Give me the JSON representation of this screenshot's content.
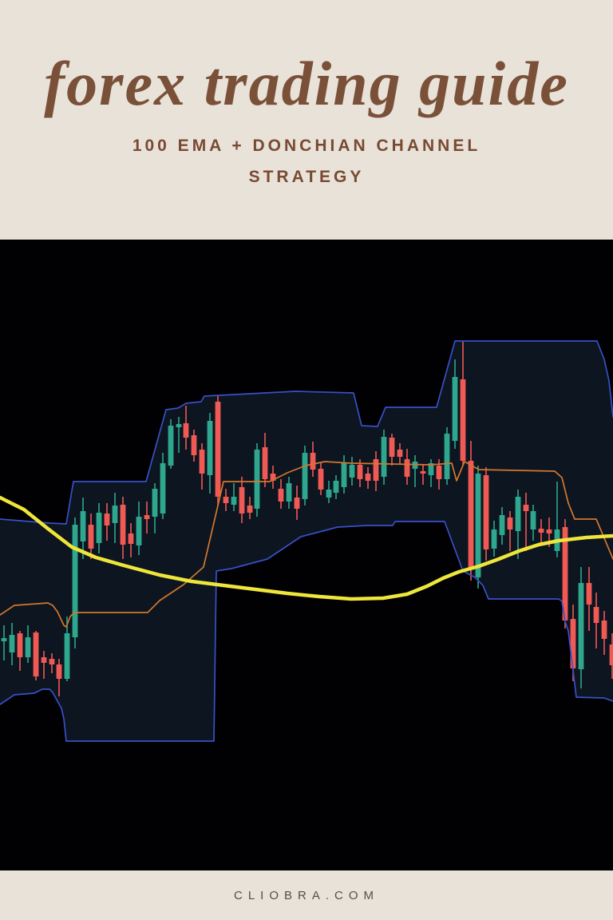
{
  "header": {
    "title": "forex trading guide",
    "subtitle_line1": "100 EMA + DONCHIAN CHANNEL",
    "subtitle_line2": "STRATEGY"
  },
  "footer": {
    "url": "CLIOBRA.COM"
  },
  "theme": {
    "page_background": "#e8e2d9",
    "title_color": "#7a5138",
    "subtitle_color": "#794a31",
    "footer_color": "#554f49",
    "chart_background": "#010103"
  },
  "chart_data": {
    "type": "candlestick",
    "title": "",
    "xlabel": "",
    "ylabel": "",
    "note": "Price chart with no visible numeric axes; values are in chart-local pixel units (x: 0-768 left to right, y: 0-790 from top, lower y = higher price).",
    "grid": false,
    "legend": false,
    "bullish_color": "#2ea78e",
    "bearish_color": "#ef5a55",
    "candle_body_width": 6.8,
    "candles": {
      "x": [
        5,
        15,
        25,
        35,
        45,
        55,
        65,
        74,
        84,
        94,
        104,
        114,
        124,
        134,
        144,
        154,
        164,
        174,
        184,
        194,
        204,
        214,
        224,
        233,
        243,
        253,
        263,
        273,
        283,
        293,
        303,
        313,
        322,
        332,
        342,
        352,
        362,
        372,
        382,
        392,
        402,
        412,
        421,
        431,
        441,
        451,
        461,
        471,
        481,
        491,
        501,
        510,
        520,
        530,
        540,
        550,
        560,
        570,
        580,
        590,
        599,
        609,
        619,
        629,
        639,
        649,
        659,
        668,
        678,
        688,
        698,
        708,
        718,
        728,
        738,
        747,
        757,
        767
      ],
      "open": [
        503,
        517,
        493,
        523,
        492,
        523,
        525,
        532,
        550,
        498,
        378,
        357,
        380,
        343,
        355,
        332,
        368,
        383,
        345,
        347,
        343,
        283,
        235,
        230,
        245,
        263,
        295,
        203,
        322,
        332,
        310,
        333,
        337,
        260,
        293,
        312,
        328,
        323,
        325,
        267,
        287,
        323,
        317,
        310,
        298,
        282,
        293,
        275,
        297,
        248,
        263,
        275,
        287,
        290,
        295,
        283,
        300,
        252,
        175,
        277,
        423,
        295,
        387,
        370,
        348,
        365,
        332,
        363,
        362,
        363,
        390,
        360,
        475,
        538,
        430,
        460,
        477,
        507
      ],
      "high": [
        483,
        480,
        490,
        483,
        490,
        515,
        518,
        525,
        472,
        348,
        323,
        343,
        330,
        330,
        317,
        322,
        355,
        328,
        328,
        305,
        267,
        225,
        222,
        208,
        238,
        255,
        217,
        196,
        312,
        305,
        297,
        322,
        255,
        242,
        283,
        300,
        297,
        308,
        258,
        253,
        278,
        302,
        295,
        270,
        272,
        275,
        285,
        265,
        238,
        243,
        255,
        262,
        270,
        282,
        275,
        275,
        235,
        150,
        128,
        252,
        283,
        285,
        352,
        335,
        340,
        313,
        317,
        332,
        350,
        348,
        303,
        350,
        457,
        410,
        410,
        442,
        465,
        493
      ],
      "low": [
        527,
        533,
        540,
        530,
        552,
        550,
        543,
        572,
        553,
        512,
        400,
        400,
        393,
        377,
        380,
        400,
        398,
        395,
        368,
        368,
        350,
        287,
        267,
        263,
        278,
        313,
        318,
        333,
        340,
        340,
        355,
        350,
        347,
        310,
        312,
        337,
        337,
        351,
        333,
        297,
        320,
        330,
        325,
        318,
        308,
        310,
        312,
        315,
        307,
        283,
        282,
        307,
        310,
        307,
        310,
        313,
        307,
        262,
        283,
        427,
        437,
        402,
        397,
        382,
        390,
        400,
        390,
        377,
        380,
        385,
        398,
        487,
        553,
        562,
        490,
        512,
        520,
        550
      ],
      "close": [
        499,
        495,
        523,
        498,
        547,
        530,
        532,
        550,
        493,
        357,
        340,
        387,
        342,
        358,
        333,
        382,
        381,
        347,
        350,
        312,
        280,
        233,
        231,
        248,
        270,
        293,
        227,
        322,
        330,
        322,
        343,
        342,
        263,
        300,
        302,
        328,
        305,
        337,
        267,
        288,
        313,
        313,
        302,
        280,
        282,
        300,
        302,
        302,
        247,
        272,
        272,
        297,
        278,
        293,
        280,
        300,
        243,
        172,
        277,
        412,
        293,
        388,
        363,
        345,
        363,
        322,
        340,
        340,
        367,
        368,
        363,
        477,
        537,
        430,
        457,
        480,
        500,
        533
      ]
    },
    "indicators": {
      "channel_fill_color": "#0c1520",
      "donchian_upper": {
        "name": "Donchian channel upper band",
        "color": "#3950c8",
        "width": 1.7,
        "points": [
          [
            0,
            350
          ],
          [
            62,
            355
          ],
          [
            83,
            356
          ],
          [
            92,
            303
          ],
          [
            183,
            303
          ],
          [
            208,
            213
          ],
          [
            223,
            211
          ],
          [
            233,
            205
          ],
          [
            252,
            203
          ],
          [
            256,
            196
          ],
          [
            370,
            190
          ],
          [
            443,
            192
          ],
          [
            453,
            233
          ],
          [
            473,
            234
          ],
          [
            483,
            210
          ],
          [
            547,
            210
          ],
          [
            570,
            127
          ],
          [
            748,
            127
          ],
          [
            757,
            150
          ],
          [
            763,
            177
          ],
          [
            768,
            222
          ]
        ]
      },
      "donchian_lower": {
        "name": "Donchian channel lower band",
        "color": "#3950c8",
        "width": 1.7,
        "points": [
          [
            0,
            582
          ],
          [
            18,
            570
          ],
          [
            43,
            568
          ],
          [
            53,
            563
          ],
          [
            62,
            563
          ],
          [
            66,
            567
          ],
          [
            72,
            578
          ],
          [
            77,
            587
          ],
          [
            80,
            600
          ],
          [
            83,
            628
          ],
          [
            268,
            628
          ],
          [
            271,
            415
          ],
          [
            290,
            412
          ],
          [
            335,
            400
          ],
          [
            377,
            372
          ],
          [
            423,
            360
          ],
          [
            460,
            358
          ],
          [
            492,
            358
          ],
          [
            495,
            353
          ],
          [
            557,
            353
          ],
          [
            570,
            388
          ],
          [
            580,
            415
          ],
          [
            595,
            423
          ],
          [
            605,
            433
          ],
          [
            612,
            450
          ],
          [
            700,
            450
          ],
          [
            704,
            453
          ],
          [
            708,
            478
          ],
          [
            712,
            490
          ],
          [
            722,
            573
          ],
          [
            757,
            574
          ],
          [
            768,
            578
          ]
        ]
      },
      "donchian_middle": {
        "name": "Donchian channel middle band",
        "color": "#d4772e",
        "width": 1.7,
        "points": [
          [
            0,
            470
          ],
          [
            18,
            458
          ],
          [
            60,
            455
          ],
          [
            66,
            458
          ],
          [
            72,
            466
          ],
          [
            80,
            483
          ],
          [
            83,
            485
          ],
          [
            88,
            472
          ],
          [
            93,
            467
          ],
          [
            185,
            467
          ],
          [
            200,
            452
          ],
          [
            230,
            432
          ],
          [
            255,
            410
          ],
          [
            280,
            303
          ],
          [
            338,
            303
          ],
          [
            360,
            292
          ],
          [
            383,
            283
          ],
          [
            407,
            278
          ],
          [
            440,
            280
          ],
          [
            540,
            282
          ],
          [
            566,
            280
          ],
          [
            572,
            302
          ],
          [
            582,
            278
          ],
          [
            600,
            288
          ],
          [
            695,
            290
          ],
          [
            704,
            298
          ],
          [
            712,
            330
          ],
          [
            720,
            350
          ],
          [
            747,
            350
          ],
          [
            768,
            400
          ]
        ]
      },
      "ema_100": {
        "name": "100 EMA",
        "color": "#efe63b",
        "width": 4.5,
        "points": [
          [
            0,
            323
          ],
          [
            30,
            338
          ],
          [
            60,
            362
          ],
          [
            90,
            385
          ],
          [
            120,
            398
          ],
          [
            155,
            408
          ],
          [
            200,
            420
          ],
          [
            240,
            428
          ],
          [
            280,
            433
          ],
          [
            320,
            438
          ],
          [
            360,
            443
          ],
          [
            400,
            447
          ],
          [
            440,
            450
          ],
          [
            480,
            449
          ],
          [
            510,
            444
          ],
          [
            535,
            434
          ],
          [
            555,
            424
          ],
          [
            575,
            416
          ],
          [
            600,
            409
          ],
          [
            625,
            400
          ],
          [
            650,
            390
          ],
          [
            675,
            382
          ],
          [
            700,
            377
          ],
          [
            735,
            373
          ],
          [
            768,
            371
          ]
        ]
      }
    }
  }
}
